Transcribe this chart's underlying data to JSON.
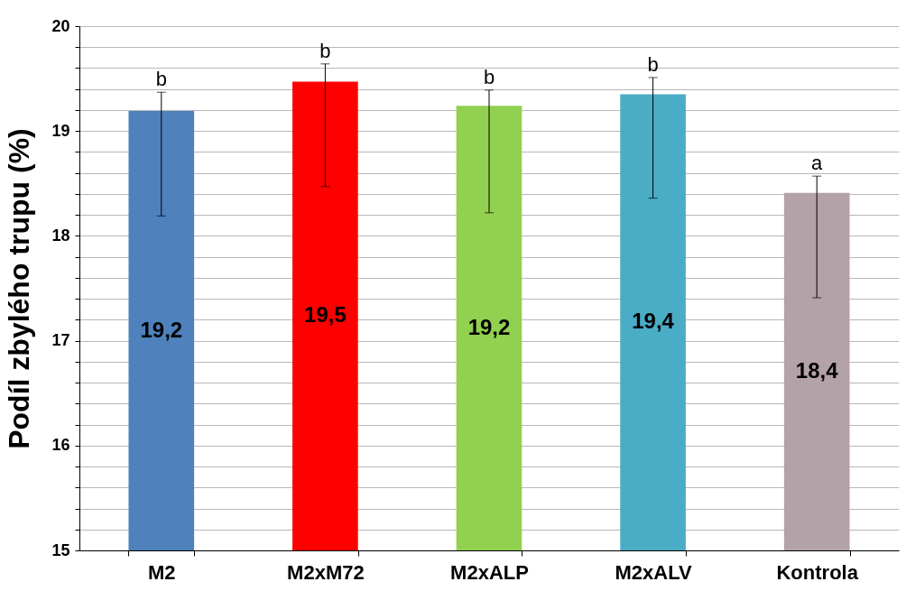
{
  "chart_data": {
    "type": "bar",
    "ylabel": "Podíl zbylého trupu (%)",
    "categories": [
      "M2",
      "M2xM72",
      "M2xALP",
      "M2xALV",
      "Kontrola"
    ],
    "values": [
      19.19,
      19.47,
      19.24,
      19.35,
      18.41
    ],
    "colors": [
      "#4f81bd",
      "#ff0000",
      "#92d050",
      "#4bacc6",
      "#b3a2a7"
    ],
    "errors": [
      [
        18.19,
        19.37
      ],
      [
        18.47,
        19.64
      ],
      [
        18.22,
        19.39
      ],
      [
        18.36,
        19.51
      ],
      [
        17.41,
        18.57
      ]
    ],
    "value_labels": [
      "19,2",
      "19,5",
      "19,2",
      "19,4",
      "18,4"
    ],
    "annotations": [
      {
        "text": "b",
        "x": "M2",
        "y": 19.37
      },
      {
        "text": "b",
        "x": "M2xM72",
        "y": 19.64
      },
      {
        "text": "b",
        "x": "M2xALP",
        "y": 19.39
      },
      {
        "text": "b",
        "x": "M2xALV",
        "y": 19.51
      },
      {
        "text": "a",
        "x": "Kontrola",
        "y": 18.57
      }
    ],
    "ylim": [
      15,
      20
    ],
    "yticks": [
      15,
      {
        "value": 15.2,
        "label": null
      },
      {
        "value": 15.4,
        "label": null
      },
      {
        "value": 15.6,
        "label": null
      },
      {
        "value": 15.8,
        "label": null
      },
      16,
      {
        "value": 16.2,
        "label": null
      },
      {
        "value": 16.4,
        "label": null
      },
      {
        "value": 16.6,
        "label": null
      },
      {
        "value": 16.8,
        "label": null
      },
      17,
      {
        "value": 17.2,
        "label": null
      },
      {
        "value": 17.4,
        "label": null
      },
      {
        "value": 17.6,
        "label": null
      },
      {
        "value": 17.8,
        "label": null
      },
      18,
      {
        "value": 18.2,
        "label": null
      },
      {
        "value": 18.4,
        "label": null
      },
      {
        "value": 18.6,
        "label": null
      },
      {
        "value": 18.8,
        "label": null
      },
      19,
      {
        "value": 19.2,
        "label": null
      },
      {
        "value": 19.4,
        "label": null
      },
      {
        "value": 19.6,
        "label": null
      },
      {
        "value": 19.8,
        "label": null
      },
      20
    ],
    "grid": "y"
  }
}
